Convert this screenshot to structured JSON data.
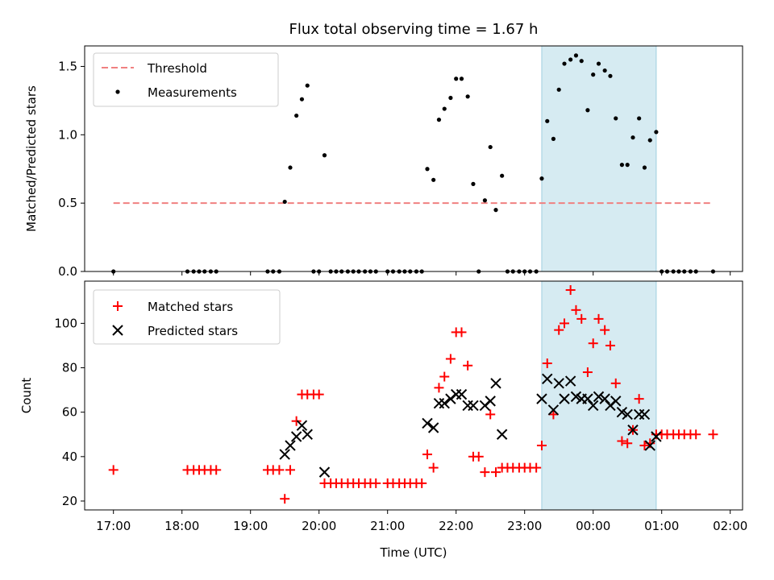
{
  "colors": {
    "threshold": "#f08080",
    "measurement": "#000000",
    "matched": "#ff0000",
    "predicted": "#000000",
    "highlight": "#add8e6"
  },
  "chart_data": [
    {
      "type": "scatter",
      "title": "Flux total observing time = 1.67 h",
      "xlabel": "",
      "ylabel": "Matched/Predicted stars",
      "xlim_hours": [
        16.58,
        26.18
      ],
      "ylim": [
        0,
        1.65
      ],
      "yticks": [
        "0.0",
        "0.5",
        "1.0",
        "1.5"
      ],
      "highlight_hours": [
        23.25,
        24.92
      ],
      "legend": {
        "placement": "upper-left",
        "entries": [
          "Threshold",
          "Measurements"
        ]
      },
      "threshold": {
        "name": "Threshold",
        "value": 0.5,
        "x_hours": [
          17.0,
          25.75
        ]
      },
      "series": [
        {
          "name": "Measurements",
          "x_hours": [
            17.0,
            18.08,
            18.17,
            18.25,
            18.33,
            18.42,
            18.5,
            19.25,
            19.33,
            19.42,
            19.5,
            19.58,
            19.67,
            19.75,
            19.83,
            19.92,
            20.0,
            20.08,
            20.17,
            20.25,
            20.33,
            20.42,
            20.5,
            20.58,
            20.67,
            20.75,
            20.83,
            21.0,
            21.08,
            21.17,
            21.25,
            21.33,
            21.42,
            21.5,
            21.58,
            21.67,
            21.75,
            21.83,
            21.92,
            22.0,
            22.08,
            22.17,
            22.25,
            22.33,
            22.42,
            22.5,
            22.58,
            22.67,
            22.75,
            22.83,
            22.92,
            23.0,
            23.08,
            23.17,
            23.25,
            23.33,
            23.42,
            23.5,
            23.58,
            23.67,
            23.75,
            23.83,
            23.92,
            24.0,
            24.08,
            24.17,
            24.25,
            24.33,
            24.42,
            24.5,
            24.58,
            24.67,
            24.75,
            24.83,
            24.92,
            25.0,
            25.08,
            25.17,
            25.25,
            25.33,
            25.42,
            25.5,
            25.75
          ],
          "y": [
            0.0,
            0.0,
            0.0,
            0.0,
            0.0,
            0.0,
            0.0,
            0.0,
            0.0,
            0.0,
            0.51,
            0.76,
            1.14,
            1.26,
            1.36,
            0.0,
            0.0,
            0.85,
            0.0,
            0.0,
            0.0,
            0.0,
            0.0,
            0.0,
            0.0,
            0.0,
            0.0,
            0.0,
            0.0,
            0.0,
            0.0,
            0.0,
            0.0,
            0.0,
            0.75,
            0.67,
            1.11,
            1.19,
            1.27,
            1.41,
            1.41,
            1.28,
            0.64,
            0.0,
            0.52,
            0.91,
            0.45,
            0.7,
            0.0,
            0.0,
            0.0,
            0.0,
            0.0,
            0.0,
            0.68,
            1.1,
            0.97,
            1.33,
            1.52,
            1.55,
            1.58,
            1.54,
            1.18,
            1.44,
            1.52,
            1.47,
            1.43,
            1.12,
            0.78,
            0.78,
            0.98,
            1.12,
            0.76,
            0.96,
            1.02,
            0.0,
            0.0,
            0.0,
            0.0,
            0.0,
            0.0,
            0.0,
            0.0
          ]
        }
      ]
    },
    {
      "type": "scatter",
      "title": "",
      "xlabel": "Time (UTC)",
      "ylabel": "Count",
      "xlim_hours": [
        16.58,
        26.18
      ],
      "ylim": [
        16,
        119
      ],
      "yticks": [
        "20",
        "40",
        "60",
        "80",
        "100"
      ],
      "xticks": [
        "17:00",
        "18:00",
        "19:00",
        "20:00",
        "21:00",
        "22:00",
        "23:00",
        "00:00",
        "01:00",
        "02:00"
      ],
      "highlight_hours": [
        23.25,
        24.92
      ],
      "legend": {
        "placement": "upper-left",
        "entries": [
          "Matched stars",
          "Predicted stars"
        ]
      },
      "series": [
        {
          "name": "Matched stars",
          "marker": "plus",
          "x_hours": [
            17.0,
            18.08,
            18.17,
            18.25,
            18.33,
            18.42,
            18.5,
            19.25,
            19.33,
            19.42,
            19.5,
            19.58,
            19.67,
            19.75,
            19.83,
            19.92,
            20.0,
            20.08,
            20.17,
            20.25,
            20.33,
            20.42,
            20.5,
            20.58,
            20.67,
            20.75,
            20.83,
            21.0,
            21.08,
            21.17,
            21.25,
            21.33,
            21.42,
            21.5,
            21.58,
            21.67,
            21.75,
            21.83,
            21.92,
            22.0,
            22.08,
            22.17,
            22.25,
            22.33,
            22.42,
            22.5,
            22.58,
            22.67,
            22.75,
            22.83,
            22.92,
            23.0,
            23.08,
            23.17,
            23.25,
            23.33,
            23.42,
            23.5,
            23.58,
            23.67,
            23.75,
            23.83,
            23.92,
            24.0,
            24.08,
            24.17,
            24.25,
            24.33,
            24.42,
            24.5,
            24.58,
            24.67,
            24.75,
            24.83,
            24.92,
            25.0,
            25.08,
            25.17,
            25.25,
            25.33,
            25.42,
            25.5,
            25.75
          ],
          "y": [
            34,
            34,
            34,
            34,
            34,
            34,
            34,
            34,
            34,
            34,
            21,
            34,
            56,
            68,
            68,
            68,
            68,
            28,
            28,
            28,
            28,
            28,
            28,
            28,
            28,
            28,
            28,
            28,
            28,
            28,
            28,
            28,
            28,
            28,
            41,
            35,
            71,
            76,
            84,
            96,
            96,
            81,
            40,
            40,
            33,
            59,
            33,
            35,
            35,
            35,
            35,
            35,
            35,
            35,
            45,
            82,
            59,
            97,
            100,
            115,
            106,
            102,
            78,
            91,
            102,
            97,
            90,
            73,
            47,
            46,
            52,
            66,
            45,
            46,
            50,
            50,
            50,
            50,
            50,
            50,
            50,
            50,
            50
          ]
        },
        {
          "name": "Predicted stars",
          "marker": "cross",
          "x_hours": [
            19.5,
            19.58,
            19.67,
            19.75,
            19.83,
            20.08,
            21.58,
            21.67,
            21.75,
            21.83,
            21.92,
            22.0,
            22.08,
            22.17,
            22.25,
            22.42,
            22.5,
            22.58,
            22.67,
            23.25,
            23.33,
            23.42,
            23.5,
            23.58,
            23.67,
            23.75,
            23.83,
            23.92,
            24.0,
            24.08,
            24.17,
            24.25,
            24.33,
            24.42,
            24.5,
            24.58,
            24.67,
            24.75,
            24.83,
            24.92
          ],
          "y": [
            41,
            45,
            49,
            54,
            50,
            33,
            55,
            53,
            64,
            64,
            66,
            68,
            68,
            63,
            63,
            63,
            65,
            73,
            50,
            66,
            75,
            61,
            73,
            66,
            74,
            67,
            66,
            66,
            63,
            67,
            66,
            63,
            65,
            60,
            59,
            52,
            59,
            59,
            45,
            49
          ]
        }
      ]
    }
  ]
}
